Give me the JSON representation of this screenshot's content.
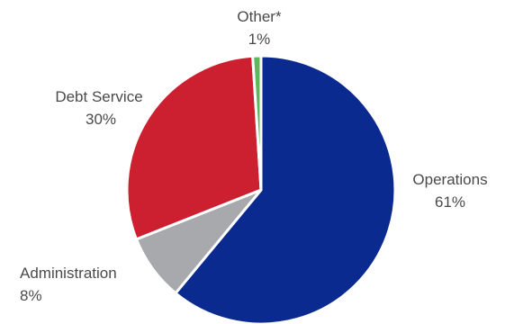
{
  "chart_data": {
    "type": "pie",
    "title": "",
    "slices": [
      {
        "label": "Operations",
        "value": 61,
        "value_label": "61%",
        "color": "#0b2a8f"
      },
      {
        "label": "Administration",
        "value": 8,
        "value_label": "8%",
        "color": "#a7a9ac"
      },
      {
        "label": "Debt Service",
        "value": 30,
        "value_label": "30%",
        "color": "#cc1f2f"
      },
      {
        "label": "Other*",
        "value": 1,
        "value_label": "1%",
        "color": "#5cb85c"
      }
    ],
    "start": "top",
    "direction": "clockwise",
    "legend": "none"
  }
}
